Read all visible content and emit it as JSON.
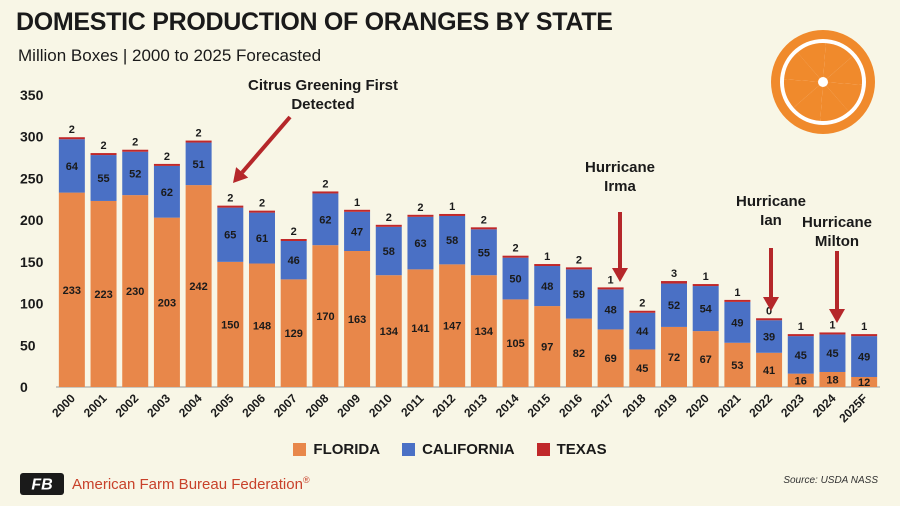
{
  "title": "DOMESTIC PRODUCTION OF ORANGES BY STATE",
  "subtitle": "Million Boxes | 2000 to 2025 Forecasted",
  "source": "Source: USDA NASS",
  "org_name": "American Farm Bureau Federation",
  "org_name_sup": "®",
  "logo_text": "FB",
  "colors": {
    "background": "#f8f6e6",
    "florida": "#e8874a",
    "california": "#4a70c5",
    "texas": "#c0282a",
    "arrow": "#b5272a",
    "brand": "#c8412a",
    "orange_icon": "#f08a2c"
  },
  "legend": {
    "florida": "FLORIDA",
    "california": "CALIFORNIA",
    "texas": "TEXAS"
  },
  "chart_data": {
    "type": "bar",
    "stacked": true,
    "title": "DOMESTIC PRODUCTION OF ORANGES BY STATE",
    "subtitle": "Million Boxes | 2000 to 2025 Forecasted",
    "ylim": [
      0,
      350
    ],
    "yticks": [
      0,
      50,
      100,
      150,
      200,
      250,
      300,
      350
    ],
    "legend_position": "bottom",
    "categories": [
      "2000",
      "2001",
      "2002",
      "2003",
      "2004",
      "2005",
      "2006",
      "2007",
      "2008",
      "2009",
      "2010",
      "2011",
      "2012",
      "2013",
      "2014",
      "2015",
      "2016",
      "2017",
      "2018",
      "2019",
      "2020",
      "2021",
      "2022",
      "2023",
      "2024",
      "2025F"
    ],
    "series": [
      {
        "name": "FLORIDA",
        "color": "#e8874a",
        "values": [
          233,
          223,
          230,
          203,
          242,
          150,
          148,
          129,
          170,
          163,
          134,
          141,
          147,
          134,
          105,
          97,
          82,
          69,
          45,
          72,
          67,
          53,
          41,
          16,
          18,
          12
        ]
      },
      {
        "name": "CALIFORNIA",
        "color": "#4a70c5",
        "values": [
          64,
          55,
          52,
          62,
          51,
          65,
          61,
          46,
          62,
          47,
          58,
          63,
          58,
          55,
          50,
          48,
          59,
          48,
          44,
          52,
          54,
          49,
          39,
          45,
          45,
          49
        ]
      },
      {
        "name": "TEXAS",
        "color": "#c0282a",
        "values": [
          2,
          2,
          2,
          2,
          2,
          2,
          2,
          2,
          2,
          1,
          2,
          2,
          1,
          2,
          2,
          1,
          2,
          1,
          2,
          3,
          1,
          1,
          0,
          1,
          1,
          1
        ]
      }
    ],
    "annotations": [
      {
        "text": "Citrus Greening First Detected",
        "lines": [
          "Citrus Greening First",
          "Detected"
        ],
        "category": "2005"
      },
      {
        "text": "Hurricane Irma",
        "lines": [
          "Hurricane",
          "Irma"
        ],
        "category": "2017"
      },
      {
        "text": "Hurricane Ian",
        "lines": [
          "Hurricane",
          "Ian"
        ],
        "category": "2022"
      },
      {
        "text": "Hurricane Milton",
        "lines": [
          "Hurricane",
          "Milton"
        ],
        "category": "2025F"
      }
    ]
  }
}
